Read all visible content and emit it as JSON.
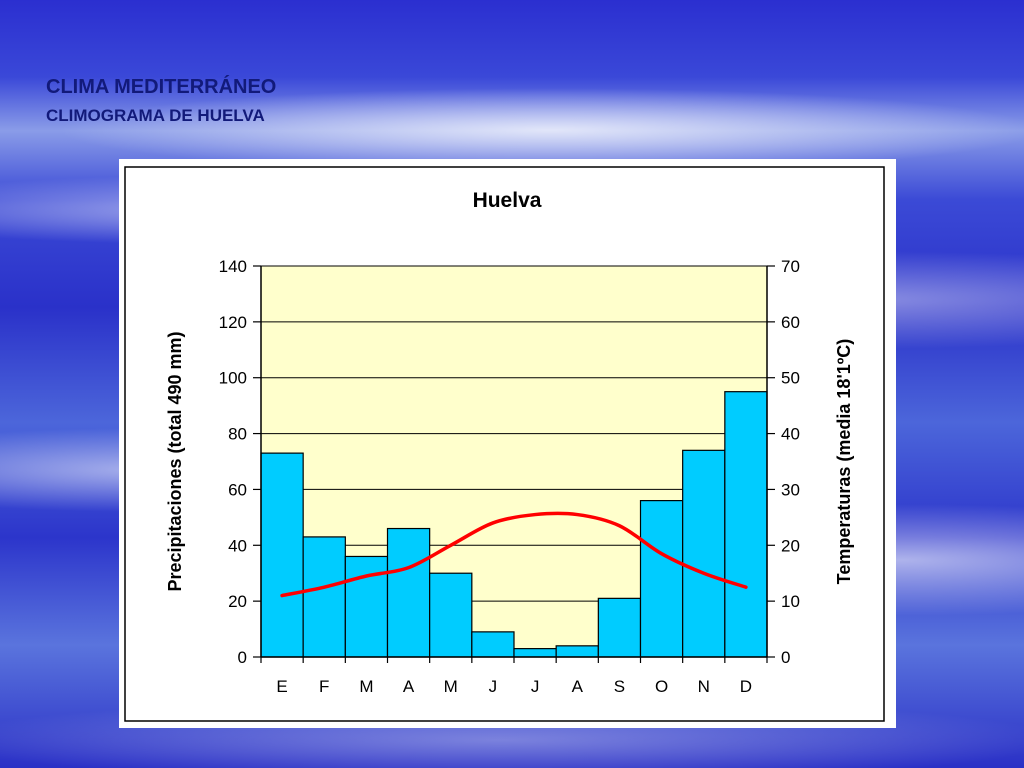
{
  "slide": {
    "title": "CLIMA MEDITERRÁNEO",
    "subtitle": "CLIMOGRAMA DE HUELVA"
  },
  "chart_data": {
    "type": "bar",
    "title": "Huelva",
    "categories": [
      "E",
      "F",
      "M",
      "A",
      "M",
      "J",
      "J",
      "A",
      "S",
      "O",
      "N",
      "D"
    ],
    "series": [
      {
        "type": "bar",
        "axis": "left",
        "color": "#00ccff",
        "values": [
          73,
          43,
          36,
          46,
          30,
          9,
          3,
          4,
          21,
          56,
          74,
          95
        ]
      },
      {
        "type": "line",
        "axis": "right",
        "color": "#ff0000",
        "values": [
          11,
          12.5,
          14.5,
          16,
          20,
          24,
          25.5,
          25.5,
          23.5,
          18.5,
          15,
          12.5
        ]
      }
    ],
    "ylabel": "Precipitaciones (total 490 mm)",
    "y2label": "Temperaturas (media 18'1ºC)",
    "ylim": [
      0,
      140
    ],
    "y2lim": [
      0,
      70
    ],
    "yticks": [
      "0",
      "20",
      "40",
      "60",
      "80",
      "100",
      "120",
      "140"
    ],
    "y2ticks": [
      "0",
      "10",
      "20",
      "30",
      "40",
      "50",
      "60",
      "70"
    ],
    "grid": true,
    "plot_background": "#ffffcc"
  }
}
